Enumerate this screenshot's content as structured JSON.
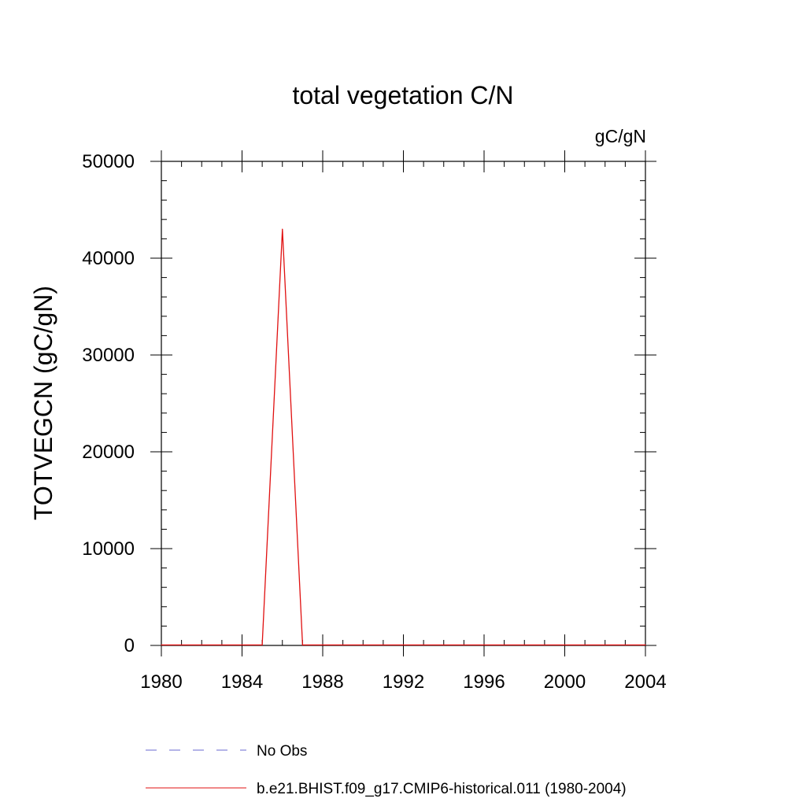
{
  "chart_data": {
    "type": "line",
    "title": "total vegetation C/N",
    "units_label": "gC/gN",
    "xlabel": "",
    "ylabel": "TOTVEGCN  (gC/gN)",
    "xlim": [
      1980,
      2004
    ],
    "ylim": [
      0,
      50000
    ],
    "x_ticks": [
      1980,
      1984,
      1988,
      1992,
      1996,
      2000,
      2004
    ],
    "x_tick_labels": [
      "1980",
      "1984",
      "1988",
      "1992",
      "1996",
      "2000",
      "2004"
    ],
    "y_ticks": [
      0,
      10000,
      20000,
      30000,
      40000,
      50000
    ],
    "y_tick_labels": [
      "0",
      "10000",
      "20000",
      "30000",
      "40000",
      "50000"
    ],
    "x_minor_step": 1,
    "y_minor_step": 2000,
    "grid": false,
    "legend_position": "bottom",
    "legend": [
      {
        "label": "No Obs",
        "color": "#6a6ad0",
        "dash": "dashed"
      },
      {
        "label": "b.e21.BHIST.f09_g17.CMIP6-historical.011 (1980-2004)",
        "color": "#e01010",
        "dash": "solid"
      }
    ],
    "series": [
      {
        "name": "b.e21.BHIST.f09_g17.CMIP6-historical.011 (1980-2004)",
        "color": "#e01010",
        "x": [
          1980,
          1981,
          1982,
          1983,
          1984,
          1985,
          1986,
          1987,
          1988,
          1989,
          1990,
          1991,
          1992,
          1993,
          1994,
          1995,
          1996,
          1997,
          1998,
          1999,
          2000,
          2001,
          2002,
          2003,
          2004
        ],
        "y": [
          50,
          50,
          50,
          50,
          50,
          50,
          43000,
          50,
          50,
          50,
          50,
          50,
          50,
          50,
          50,
          50,
          50,
          50,
          50,
          50,
          50,
          50,
          50,
          50,
          50
        ]
      }
    ]
  }
}
